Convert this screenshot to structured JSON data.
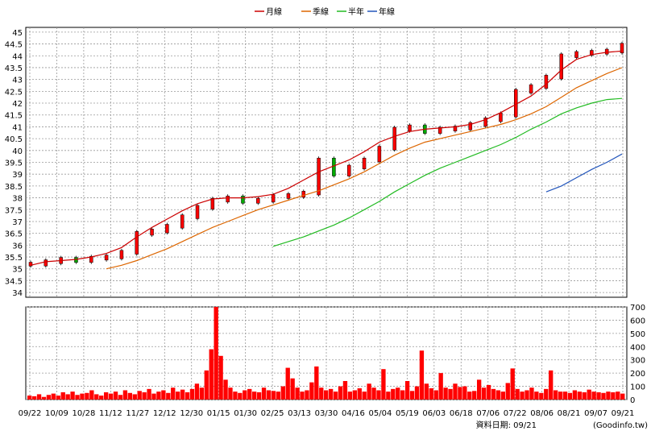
{
  "chart_data": [
    {
      "type": "line",
      "panel": "price",
      "legend": [
        {
          "name": "月線",
          "color": "#cc0000"
        },
        {
          "name": "季線",
          "color": "#dd6600"
        },
        {
          "name": "半年",
          "color": "#22bb22"
        },
        {
          "name": "年線",
          "color": "#2255bb"
        }
      ],
      "legend_position": "top-center",
      "ylim": [
        33.8,
        45.2
      ],
      "yticks": [
        "45",
        "44.5",
        "44",
        "43.5",
        "43",
        "42.5",
        "42",
        "41.5",
        "41",
        "40.5",
        "40",
        "39.5",
        "39",
        "38.5",
        "38",
        "37.5",
        "37",
        "36.5",
        "36",
        "35.5",
        "35",
        "34.5",
        "34"
      ],
      "x_labels": [
        "09/22",
        "10/09",
        "10/28",
        "11/12",
        "11/27",
        "12/12",
        "12/30",
        "01/15",
        "01/30",
        "02/25",
        "03/13",
        "03/30",
        "04/16",
        "05/04",
        "05/19",
        "06/03",
        "06/18",
        "07/06",
        "07/22",
        "08/06",
        "08/21",
        "09/07",
        "09/21"
      ],
      "grid": true,
      "candles": [
        35.2,
        35.3,
        35.4,
        35.35,
        35.45,
        35.5,
        35.7,
        36.5,
        36.6,
        36.8,
        37.2,
        37.6,
        37.9,
        38.0,
        37.85,
        37.9,
        38.05,
        38.1,
        38.2,
        39.6,
        39.0,
        39.3,
        39.6,
        40.1,
        40.9,
        41.0,
        40.8,
        40.9,
        40.95,
        41.1,
        41.3,
        41.5,
        42.5,
        42.7,
        43.1,
        44.0,
        44.1,
        44.15,
        44.2,
        44.45
      ],
      "series": [
        {
          "name": "月線",
          "color": "#cc0000",
          "values": [
            35.15,
            35.3,
            35.35,
            35.4,
            35.5,
            35.65,
            35.9,
            36.35,
            36.75,
            37.1,
            37.45,
            37.75,
            37.95,
            38.0,
            38.0,
            38.05,
            38.15,
            38.4,
            38.75,
            39.1,
            39.35,
            39.6,
            39.95,
            40.35,
            40.6,
            40.8,
            40.9,
            40.95,
            41.0,
            41.1,
            41.3,
            41.6,
            41.95,
            42.3,
            42.8,
            43.4,
            43.85,
            44.05,
            44.15,
            44.2
          ]
        },
        {
          "name": "季線",
          "color": "#dd6600",
          "values": [
            null,
            null,
            null,
            null,
            null,
            35.0,
            35.15,
            35.35,
            35.6,
            35.85,
            36.15,
            36.45,
            36.75,
            37.0,
            37.25,
            37.5,
            37.7,
            37.9,
            38.1,
            38.3,
            38.55,
            38.8,
            39.1,
            39.45,
            39.8,
            40.1,
            40.35,
            40.5,
            40.65,
            40.8,
            40.95,
            41.1,
            41.3,
            41.55,
            41.85,
            42.25,
            42.65,
            42.95,
            43.25,
            43.5
          ]
        },
        {
          "name": "半年",
          "color": "#22bb22",
          "values": [
            null,
            null,
            null,
            null,
            null,
            null,
            null,
            null,
            null,
            null,
            null,
            null,
            null,
            null,
            null,
            null,
            35.95,
            36.15,
            36.35,
            36.6,
            36.85,
            37.15,
            37.5,
            37.85,
            38.25,
            38.6,
            38.95,
            39.25,
            39.5,
            39.75,
            40.0,
            40.25,
            40.55,
            40.9,
            41.2,
            41.55,
            41.8,
            42.0,
            42.15,
            42.2
          ]
        },
        {
          "name": "年線",
          "color": "#2255bb",
          "values": [
            null,
            null,
            null,
            null,
            null,
            null,
            null,
            null,
            null,
            null,
            null,
            null,
            null,
            null,
            null,
            null,
            null,
            null,
            null,
            null,
            null,
            null,
            null,
            null,
            null,
            null,
            null,
            null,
            null,
            null,
            null,
            null,
            null,
            null,
            38.25,
            38.5,
            38.85,
            39.2,
            39.5,
            39.85
          ]
        }
      ]
    },
    {
      "type": "bar",
      "panel": "volume",
      "ylim": [
        0,
        700
      ],
      "yticks": [
        "700",
        "600",
        "500",
        "400",
        "300",
        "200",
        "100",
        "0"
      ],
      "color": "#ff0000",
      "values": [
        30,
        25,
        40,
        20,
        35,
        45,
        30,
        55,
        40,
        60,
        35,
        45,
        50,
        70,
        40,
        30,
        55,
        45,
        60,
        35,
        70,
        50,
        40,
        65,
        55,
        80,
        45,
        60,
        70,
        50,
        90,
        60,
        75,
        55,
        80,
        120,
        90,
        220,
        380,
        700,
        330,
        150,
        90,
        60,
        50,
        70,
        80,
        60,
        55,
        90,
        70,
        65,
        60,
        100,
        240,
        160,
        90,
        60,
        70,
        130,
        250,
        90,
        70,
        80,
        60,
        100,
        140,
        60,
        70,
        85,
        60,
        120,
        90,
        70,
        230,
        60,
        80,
        90,
        70,
        140,
        65,
        100,
        370,
        120,
        85,
        70,
        200,
        90,
        80,
        120,
        95,
        100,
        60,
        65,
        150,
        90,
        110,
        80,
        70,
        60,
        125,
        235,
        80,
        60,
        70,
        90,
        60,
        50,
        80,
        220,
        70,
        60,
        60,
        50,
        70,
        60,
        55,
        75,
        60,
        55,
        50,
        60,
        55,
        60,
        45
      ]
    }
  ],
  "footer": {
    "date_label": "資料日期: 09/21",
    "source": "(Goodinfo.tw)"
  }
}
